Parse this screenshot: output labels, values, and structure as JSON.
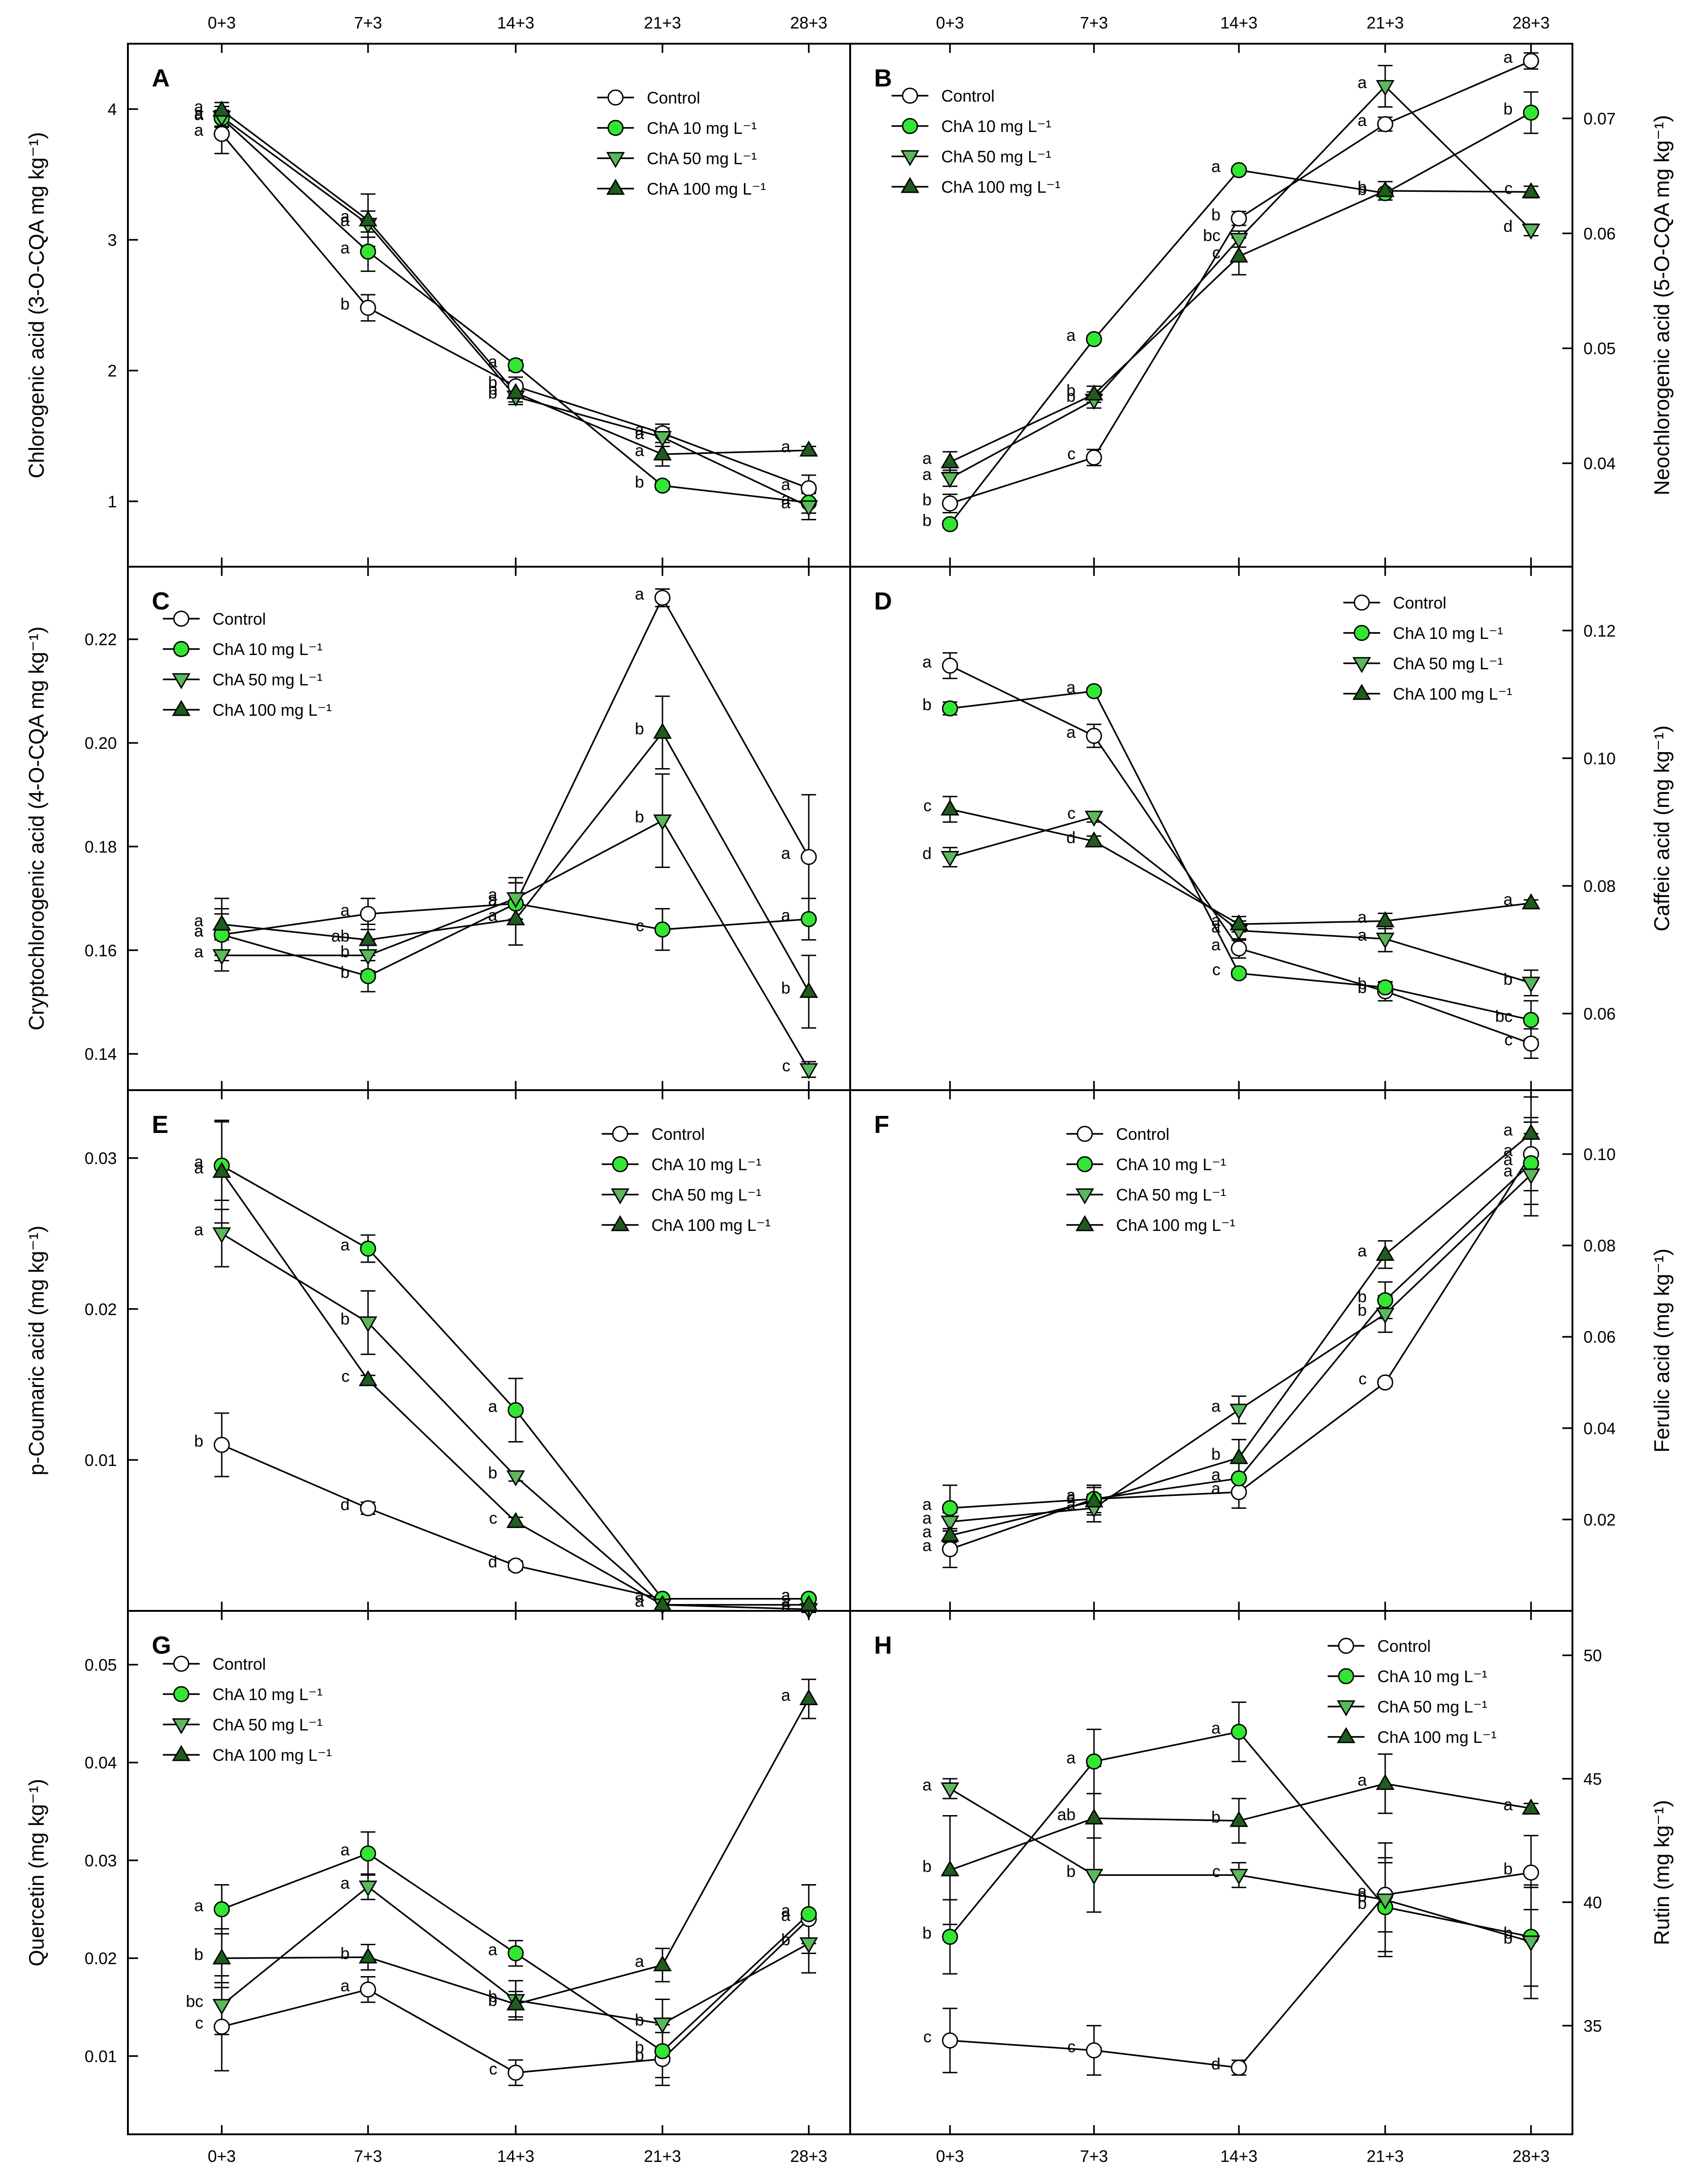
{
  "x_categories": [
    "0+3",
    "7+3",
    "14+3",
    "21+3",
    "28+3"
  ],
  "series_names": [
    "Control",
    "ChA 10 mg L⁻¹",
    "ChA 50 mg L⁻¹",
    "ChA 100 mg L⁻¹"
  ],
  "series_styles": [
    {
      "marker": "circle",
      "fill": "#ffffff"
    },
    {
      "marker": "circle",
      "fill": "#33e633"
    },
    {
      "marker": "triangle-down",
      "fill": "#5cb85c"
    },
    {
      "marker": "triangle-up",
      "fill": "#1f5c1f"
    }
  ],
  "chart_data": [
    {
      "panel": "A",
      "type": "line",
      "ylabel": "Chlorogenic acid (3-O-CQA mg kg⁻¹)",
      "ylim": [
        0.5,
        4.5
      ],
      "yticks": [
        1,
        2,
        3,
        4
      ],
      "tick_decimals": 0,
      "categories": [
        "0+3",
        "7+3",
        "14+3",
        "21+3",
        "28+3"
      ],
      "series": [
        {
          "name": "Control",
          "values": [
            3.81,
            2.48,
            1.88,
            1.52,
            1.1
          ],
          "errors": [
            0.15,
            0.1,
            0.07,
            0.07,
            0.1
          ],
          "letters": [
            "a",
            "b",
            "b",
            "a",
            "a"
          ]
        },
        {
          "name": "ChA 10 mg L⁻¹",
          "values": [
            3.93,
            2.91,
            2.04,
            1.12,
            0.99
          ],
          "errors": [
            0.06,
            0.15,
            0.04,
            0.03,
            0.08
          ],
          "letters": [
            "a",
            "a",
            "a",
            "b",
            "a"
          ]
        },
        {
          "name": "ChA 50 mg L⁻¹",
          "values": [
            3.94,
            3.12,
            1.8,
            1.49,
            0.96
          ],
          "errors": [
            0.08,
            0.1,
            0.06,
            0.07,
            0.1
          ],
          "letters": [
            "a",
            "a",
            "b",
            "a",
            "a"
          ]
        },
        {
          "name": "ChA 100 mg L⁻¹",
          "values": [
            3.99,
            3.15,
            1.83,
            1.36,
            1.39
          ],
          "errors": [
            0.06,
            0.2,
            0.07,
            0.09,
            0.03
          ],
          "letters": [
            "a",
            "a",
            "b",
            "a",
            "a"
          ]
        }
      ]
    },
    {
      "panel": "B",
      "type": "line",
      "ylabel": "Neochlorogenic acid (5-O-CQA mg kg⁻¹)",
      "ylim": [
        0.031,
        0.0765
      ],
      "yticks": [
        0.04,
        0.05,
        0.06,
        0.07
      ],
      "tick_decimals": 2,
      "categories": [
        "0+3",
        "7+3",
        "14+3",
        "21+3",
        "28+3"
      ],
      "series": [
        {
          "name": "Control",
          "values": [
            0.0365,
            0.0405,
            0.0613,
            0.0695,
            0.075
          ],
          "errors": [
            0.0008,
            0.0007,
            0.0006,
            0.0006,
            0.0007
          ],
          "letters": [
            "b",
            "c",
            "b",
            "a",
            "a"
          ]
        },
        {
          "name": "ChA 10 mg L⁻¹",
          "values": [
            0.0347,
            0.0508,
            0.0655,
            0.0635,
            0.0705
          ],
          "errors": [
            0.0003,
            0.0003,
            0.0003,
            0.0003,
            0.0018
          ],
          "letters": [
            "b",
            "a",
            "a",
            "b",
            "b"
          ]
        },
        {
          "name": "ChA 50 mg L⁻¹",
          "values": [
            0.0387,
            0.0455,
            0.0595,
            0.0728,
            0.0603
          ],
          "errors": [
            0.0007,
            0.0007,
            0.0007,
            0.0018,
            0.0005
          ],
          "letters": [
            "a",
            "b",
            "bc",
            "a",
            "d"
          ]
        },
        {
          "name": "ChA 100 mg L⁻¹",
          "values": [
            0.0401,
            0.046,
            0.058,
            0.0637,
            0.0636
          ],
          "errors": [
            0.0009,
            0.0007,
            0.0016,
            0.0008,
            0.0005
          ],
          "letters": [
            "a",
            "b",
            "c",
            "b",
            "c"
          ]
        }
      ]
    },
    {
      "panel": "C",
      "type": "line",
      "ylabel": "Cryptochlorogenic acid (4-O-CQA mg kg⁻¹)",
      "ylim": [
        0.133,
        0.234
      ],
      "yticks": [
        0.14,
        0.16,
        0.18,
        0.2,
        0.22
      ],
      "tick_decimals": 2,
      "categories": [
        "0+3",
        "7+3",
        "14+3",
        "21+3",
        "28+3"
      ],
      "series": [
        {
          "name": "Control",
          "values": [
            0.163,
            0.167,
            0.169,
            0.228,
            0.178
          ],
          "errors": [
            0.005,
            0.003,
            0.004,
            0.0017,
            0.012
          ],
          "letters": [
            "a",
            "a",
            "a",
            "a",
            "a"
          ]
        },
        {
          "name": "ChA 10 mg L⁻¹",
          "values": [
            0.163,
            0.155,
            0.169,
            0.164,
            0.166
          ],
          "errors": [
            0.004,
            0.003,
            0.004,
            0.004,
            0.004
          ],
          "letters": [
            "a",
            "b",
            "a",
            "c",
            "a"
          ]
        },
        {
          "name": "ChA 50 mg L⁻¹",
          "values": [
            0.159,
            0.159,
            0.17,
            0.185,
            0.137
          ],
          "errors": [
            0.003,
            0.003,
            0.004,
            0.009,
            0.0015
          ],
          "letters": [
            "a",
            "b",
            "a",
            "b",
            "c"
          ]
        },
        {
          "name": "ChA 100 mg L⁻¹",
          "values": [
            0.165,
            0.162,
            0.166,
            0.202,
            0.152
          ],
          "errors": [
            0.005,
            0.003,
            0.005,
            0.007,
            0.007
          ],
          "letters": [
            "a",
            "ab",
            "a",
            "b",
            "b"
          ]
        }
      ]
    },
    {
      "panel": "D",
      "type": "line",
      "ylabel": "Caffeic acid (mg kg⁻¹)",
      "ylim": [
        0.048,
        0.13
      ],
      "yticks": [
        0.06,
        0.08,
        0.1,
        0.12
      ],
      "tick_decimals": 2,
      "categories": [
        "0+3",
        "7+3",
        "14+3",
        "21+3",
        "28+3"
      ],
      "series": [
        {
          "name": "Control",
          "values": [
            0.1145,
            0.1035,
            0.0702,
            0.0635,
            0.0553
          ],
          "errors": [
            0.002,
            0.0018,
            0.0015,
            0.0015,
            0.0023
          ],
          "letters": [
            "a",
            "a",
            "a",
            "b",
            "c"
          ]
        },
        {
          "name": "ChA 10 mg L⁻¹",
          "values": [
            0.1078,
            0.1105,
            0.0663,
            0.0641,
            0.059
          ],
          "errors": [
            0.001,
            0.0005,
            0.0006,
            0.0008,
            0.003
          ],
          "letters": [
            "b",
            "a",
            "c",
            "b",
            "bc"
          ]
        },
        {
          "name": "ChA 50 mg L⁻¹",
          "values": [
            0.0845,
            0.0908,
            0.073,
            0.0717,
            0.0648
          ],
          "errors": [
            0.0015,
            0.0008,
            0.0015,
            0.002,
            0.002
          ],
          "letters": [
            "d",
            "c",
            "a",
            "a",
            "b"
          ]
        },
        {
          "name": "ChA 100 mg L⁻¹",
          "values": [
            0.092,
            0.087,
            0.074,
            0.0745,
            0.0773
          ],
          "errors": [
            0.002,
            0.0008,
            0.0012,
            0.0012,
            0.0005
          ],
          "letters": [
            "c",
            "d",
            "a",
            "a",
            "a"
          ]
        }
      ]
    },
    {
      "panel": "E",
      "type": "line",
      "ylabel": "p-Coumaric acid (mg kg⁻¹)",
      "ylim": [
        0.0,
        0.0345
      ],
      "yticks": [
        0.01,
        0.02,
        0.03
      ],
      "tick_decimals": 2,
      "categories": [
        "0+3",
        "7+3",
        "14+3",
        "21+3",
        "28+3"
      ],
      "series": [
        {
          "name": "Control",
          "values": [
            0.011,
            0.0068,
            0.003,
            0.0008,
            0.0008
          ],
          "errors": [
            0.0021,
            0.0004,
            0.0003,
            0.0002,
            0.0002
          ],
          "letters": [
            "b",
            "d",
            "d",
            "a",
            "a"
          ]
        },
        {
          "name": "ChA 10 mg L⁻¹",
          "values": [
            0.0295,
            0.024,
            0.0133,
            0.0008,
            0.0008
          ],
          "errors": [
            0.0029,
            0.0009,
            0.0021,
            0.0002,
            0.0002
          ],
          "letters": [
            "a",
            "a",
            "a",
            "a",
            "a"
          ]
        },
        {
          "name": "ChA 50 mg L⁻¹",
          "values": [
            0.025,
            0.0191,
            0.0089,
            0.0004,
            0.0001
          ],
          "errors": [
            0.0022,
            0.0021,
            0.0003,
            0.0002,
            0.0002
          ],
          "letters": [
            "a",
            "b",
            "b",
            "a",
            "a"
          ]
        },
        {
          "name": "ChA 100 mg L⁻¹",
          "values": [
            0.0291,
            0.0153,
            0.0059,
            0.0004,
            0.0004
          ],
          "errors": [
            0.0034,
            0.0003,
            0.0003,
            0.0002,
            0.0002
          ],
          "letters": [
            "a",
            "c",
            "c",
            "a",
            "a"
          ]
        }
      ]
    },
    {
      "panel": "F",
      "type": "line",
      "ylabel": "Ferulic acid (mg kg⁻¹)",
      "ylim": [
        0.0,
        0.114
      ],
      "yticks": [
        0.02,
        0.04,
        0.06,
        0.08,
        0.1
      ],
      "tick_decimals": 2,
      "categories": [
        "0+3",
        "7+3",
        "14+3",
        "21+3",
        "28+3"
      ],
      "series": [
        {
          "name": "Control",
          "values": [
            0.0135,
            0.0245,
            0.026,
            0.05,
            0.1
          ],
          "errors": [
            0.004,
            0.003,
            0.0035,
            0.0008,
            0.008
          ],
          "letters": [
            "a",
            "a",
            "a",
            "c",
            "a"
          ]
        },
        {
          "name": "ChA 10 mg L⁻¹",
          "values": [
            0.0225,
            0.0245,
            0.029,
            0.068,
            0.098
          ],
          "errors": [
            0.005,
            0.003,
            0.0035,
            0.004,
            0.009
          ],
          "letters": [
            "a",
            "a",
            "a",
            "b",
            "a"
          ]
        },
        {
          "name": "ChA 50 mg L⁻¹",
          "values": [
            0.0195,
            0.0225,
            0.044,
            0.065,
            0.0955
          ],
          "errors": [
            0.002,
            0.003,
            0.003,
            0.004,
            0.009
          ],
          "letters": [
            "a",
            "a",
            "a",
            "b",
            "a"
          ]
        },
        {
          "name": "ChA 100 mg L⁻¹",
          "values": [
            0.0165,
            0.024,
            0.0335,
            0.078,
            0.1045
          ],
          "errors": [
            0.0015,
            0.003,
            0.004,
            0.003,
            0.008
          ],
          "letters": [
            "a",
            "a",
            "b",
            "a",
            "a"
          ]
        }
      ]
    },
    {
      "panel": "G",
      "type": "line",
      "ylabel": "Quercetin (mg kg⁻¹)",
      "ylim": [
        0.002,
        0.0555
      ],
      "yticks": [
        0.01,
        0.02,
        0.03,
        0.04,
        0.05
      ],
      "tick_decimals": 2,
      "categories": [
        "0+3",
        "7+3",
        "14+3",
        "21+3",
        "28+3"
      ],
      "series": [
        {
          "name": "Control",
          "values": [
            0.013,
            0.0168,
            0.0083,
            0.0097,
            0.024
          ],
          "errors": [
            0.0045,
            0.0013,
            0.0013,
            0.0027,
            0.0035
          ],
          "letters": [
            "c",
            "a",
            "c",
            "b",
            "a"
          ]
        },
        {
          "name": "ChA 10 mg L⁻¹",
          "values": [
            0.025,
            0.0307,
            0.0205,
            0.0105,
            0.0245
          ],
          "errors": [
            0.0025,
            0.0022,
            0.0013,
            0.0027,
            0.003
          ],
          "letters": [
            "a",
            "a",
            "a",
            "b",
            "a"
          ]
        },
        {
          "name": "ChA 50 mg L⁻¹",
          "values": [
            0.0152,
            0.0273,
            0.0157,
            0.0133,
            0.0215
          ],
          "errors": [
            0.003,
            0.0013,
            0.002,
            0.0025,
            0.003
          ],
          "letters": [
            "bc",
            "a",
            "b",
            "b",
            "b"
          ]
        },
        {
          "name": "ChA 100 mg L⁻¹",
          "values": [
            0.02,
            0.0201,
            0.0153,
            0.0193,
            0.0465
          ],
          "errors": [
            0.003,
            0.0013,
            0.0013,
            0.0017,
            0.002
          ],
          "letters": [
            "b",
            "b",
            "b",
            "a",
            "a"
          ]
        }
      ]
    },
    {
      "panel": "H",
      "type": "line",
      "ylabel": "Rutin (mg kg⁻¹)",
      "ylim": [
        30.6,
        51.8
      ],
      "yticks": [
        35,
        40,
        45,
        50
      ],
      "tick_decimals": 0,
      "categories": [
        "0+3",
        "7+3",
        "14+3",
        "21+3",
        "28+3"
      ],
      "series": [
        {
          "name": "Control",
          "values": [
            34.4,
            34.0,
            33.3,
            40.3,
            41.2
          ],
          "errors": [
            1.3,
            1.0,
            0.3,
            1.5,
            1.5
          ],
          "letters": [
            "c",
            "c",
            "d",
            "a",
            "b"
          ]
        },
        {
          "name": "ChA 10 mg L⁻¹",
          "values": [
            38.6,
            45.7,
            46.9,
            39.8,
            38.6
          ],
          "errors": [
            1.5,
            1.3,
            1.2,
            1.8,
            2.0
          ],
          "letters": [
            "b",
            "a",
            "a",
            "b",
            "b"
          ]
        },
        {
          "name": "ChA 50 mg L⁻¹",
          "values": [
            44.6,
            41.1,
            41.1,
            40.1,
            38.4
          ],
          "errors": [
            0.4,
            1.5,
            0.5,
            2.3,
            2.3
          ],
          "letters": [
            "a",
            "b",
            "c",
            "b",
            "b"
          ]
        },
        {
          "name": "ChA 100 mg L⁻¹",
          "values": [
            41.3,
            43.4,
            43.3,
            44.8,
            43.8
          ],
          "errors": [
            2.2,
            2.1,
            0.9,
            1.2,
            0.2
          ],
          "letters": [
            "b",
            "ab",
            "b",
            "a",
            "a"
          ]
        }
      ]
    }
  ]
}
